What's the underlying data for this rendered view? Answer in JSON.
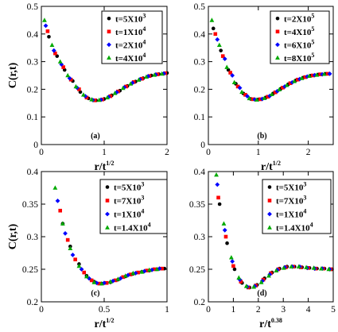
{
  "colors": {
    "black": "#000000",
    "red": "#ff0000",
    "blue": "#0000ff",
    "green": "#00aa00"
  },
  "chart_data": [
    {
      "type": "scatter",
      "panel_label": "(a)",
      "ylabel": "C(r,t)",
      "xlabel": {
        "base": "r/t",
        "exp": "1/2"
      },
      "xlim": [
        0,
        2
      ],
      "ylim": [
        0,
        0.5
      ],
      "xticks": [
        {
          "v": 0,
          "label": "0"
        },
        {
          "v": 1,
          "label": "1"
        },
        {
          "v": 2,
          "label": "2"
        }
      ],
      "yticks": [
        {
          "v": 0,
          "label": "0"
        },
        {
          "v": 0.1,
          "label": "0.1"
        },
        {
          "v": 0.2,
          "label": "0.2"
        },
        {
          "v": 0.3,
          "label": "0.3"
        },
        {
          "v": 0.4,
          "label": "0.4"
        },
        {
          "v": 0.5,
          "label": "0.5"
        }
      ],
      "legend_position": "top-right",
      "series": [
        {
          "name": "t=5X10",
          "exp": "3",
          "color": "#000000",
          "marker": "circle",
          "x": [
            0.12,
            0.25,
            0.37,
            0.5,
            0.62,
            0.75,
            0.87,
            1.0,
            1.12,
            1.25,
            1.37,
            1.5,
            1.62,
            1.75,
            1.87,
            2.0
          ],
          "y": [
            0.39,
            0.32,
            0.27,
            0.23,
            0.19,
            0.167,
            0.16,
            0.165,
            0.178,
            0.195,
            0.212,
            0.228,
            0.24,
            0.25,
            0.255,
            0.259
          ]
        },
        {
          "name": "t=1X10",
          "exp": "4",
          "color": "#ff0000",
          "marker": "square",
          "x": [
            0.1,
            0.22,
            0.35,
            0.47,
            0.6,
            0.72,
            0.85,
            0.97,
            1.1,
            1.22,
            1.35,
            1.47,
            1.6,
            1.72,
            1.85,
            1.97
          ],
          "y": [
            0.41,
            0.33,
            0.28,
            0.235,
            0.2,
            0.17,
            0.16,
            0.163,
            0.175,
            0.192,
            0.21,
            0.226,
            0.238,
            0.248,
            0.254,
            0.258
          ]
        },
        {
          "name": "t=2X10",
          "exp": "4",
          "color": "#0000ff",
          "marker": "diamond",
          "x": [
            0.07,
            0.2,
            0.32,
            0.45,
            0.57,
            0.7,
            0.82,
            0.95,
            1.07,
            1.2,
            1.32,
            1.45,
            1.57,
            1.7,
            1.82,
            1.95
          ],
          "y": [
            0.43,
            0.34,
            0.29,
            0.24,
            0.205,
            0.175,
            0.161,
            0.162,
            0.172,
            0.189,
            0.207,
            0.223,
            0.236,
            0.247,
            0.253,
            0.257
          ]
        },
        {
          "name": "t=4X10",
          "exp": "4",
          "color": "#00aa00",
          "marker": "triangle",
          "x": [
            0.05,
            0.17,
            0.3,
            0.42,
            0.55,
            0.67,
            0.8,
            0.92,
            1.05,
            1.17,
            1.3,
            1.42,
            1.55,
            1.67,
            1.8,
            1.92
          ],
          "y": [
            0.45,
            0.36,
            0.3,
            0.25,
            0.21,
            0.18,
            0.163,
            0.161,
            0.17,
            0.186,
            0.204,
            0.22,
            0.234,
            0.245,
            0.252,
            0.256
          ]
        }
      ]
    },
    {
      "type": "scatter",
      "panel_label": "(b)",
      "ylabel": "",
      "xlabel": {
        "base": "r/t",
        "exp": "1/2"
      },
      "xlim": [
        0,
        2.5
      ],
      "ylim": [
        0,
        0.5
      ],
      "xticks": [
        {
          "v": 0,
          "label": "0"
        },
        {
          "v": 1,
          "label": "1"
        },
        {
          "v": 2,
          "label": "2"
        }
      ],
      "yticks": [
        {
          "v": 0,
          "label": "0"
        },
        {
          "v": 0.1,
          "label": "0.1"
        },
        {
          "v": 0.2,
          "label": "0.2"
        },
        {
          "v": 0.3,
          "label": "0.3"
        },
        {
          "v": 0.4,
          "label": "0.4"
        },
        {
          "v": 0.5,
          "label": "0.5"
        }
      ],
      "legend_position": "top-right",
      "series": [
        {
          "name": "t=2X10",
          "exp": "5",
          "color": "#000000",
          "marker": "circle",
          "x": [
            0.1,
            0.25,
            0.4,
            0.55,
            0.7,
            0.85,
            1.0,
            1.15,
            1.3,
            1.45,
            1.6,
            1.75,
            1.9,
            2.05,
            2.2,
            2.35
          ],
          "y": [
            0.42,
            0.34,
            0.27,
            0.22,
            0.185,
            0.165,
            0.163,
            0.17,
            0.185,
            0.202,
            0.218,
            0.232,
            0.242,
            0.249,
            0.253,
            0.256
          ]
        },
        {
          "name": "t=4X10",
          "exp": "5",
          "color": "#ff0000",
          "marker": "square",
          "x": [
            0.14,
            0.29,
            0.44,
            0.59,
            0.74,
            0.89,
            1.04,
            1.19,
            1.34,
            1.49,
            1.64,
            1.79,
            1.94,
            2.09,
            2.24,
            2.39
          ],
          "y": [
            0.4,
            0.32,
            0.26,
            0.21,
            0.18,
            0.164,
            0.164,
            0.173,
            0.189,
            0.206,
            0.222,
            0.235,
            0.244,
            0.25,
            0.254,
            0.256
          ]
        },
        {
          "name": "t=6X10",
          "exp": "5",
          "color": "#0000ff",
          "marker": "diamond",
          "x": [
            0.18,
            0.33,
            0.48,
            0.63,
            0.78,
            0.93,
            1.08,
            1.23,
            1.38,
            1.53,
            1.68,
            1.83,
            1.98,
            2.13,
            2.28,
            2.43
          ],
          "y": [
            0.38,
            0.31,
            0.25,
            0.205,
            0.175,
            0.163,
            0.165,
            0.176,
            0.193,
            0.21,
            0.225,
            0.237,
            0.246,
            0.251,
            0.254,
            0.256
          ]
        },
        {
          "name": "t=8X10",
          "exp": "5",
          "color": "#00aa00",
          "marker": "triangle",
          "x": [
            0.07,
            0.22,
            0.37,
            0.52,
            0.67,
            0.82,
            0.97,
            1.12,
            1.27,
            1.42,
            1.57,
            1.72,
            1.87,
            2.02,
            2.17,
            2.32
          ],
          "y": [
            0.45,
            0.36,
            0.28,
            0.225,
            0.19,
            0.167,
            0.162,
            0.168,
            0.182,
            0.199,
            0.215,
            0.229,
            0.24,
            0.248,
            0.252,
            0.255
          ]
        }
      ]
    },
    {
      "type": "scatter",
      "panel_label": "(c)",
      "ylabel": "C(r,t)",
      "xlabel": {
        "base": "r/t",
        "exp": "1/2"
      },
      "xlim": [
        0,
        1
      ],
      "ylim": [
        0.2,
        0.4
      ],
      "xticks": [
        {
          "v": 0,
          "label": "0"
        },
        {
          "v": 0.5,
          "label": "0.5"
        },
        {
          "v": 1,
          "label": "1"
        }
      ],
      "yticks": [
        {
          "v": 0.2,
          "label": "0.2"
        },
        {
          "v": 0.25,
          "label": "0.25"
        },
        {
          "v": 0.3,
          "label": "0.3"
        },
        {
          "v": 0.35,
          "label": "0.35"
        },
        {
          "v": 0.4,
          "label": "0.4"
        }
      ],
      "legend_position": "top-right",
      "series": [
        {
          "name": "t=5X10",
          "exp": "3",
          "color": "#000000",
          "marker": "circle",
          "x": [
            0.17,
            0.23,
            0.3,
            0.36,
            0.42,
            0.48,
            0.55,
            0.61,
            0.67,
            0.73,
            0.8,
            0.86,
            0.92,
            0.98
          ],
          "y": [
            0.32,
            0.285,
            0.258,
            0.24,
            0.231,
            0.228,
            0.23,
            0.234,
            0.239,
            0.243,
            0.246,
            0.248,
            0.25,
            0.251
          ]
        },
        {
          "name": "t=7X10",
          "exp": "3",
          "color": "#ff0000",
          "marker": "square",
          "x": [
            0.15,
            0.21,
            0.27,
            0.34,
            0.4,
            0.46,
            0.52,
            0.59,
            0.65,
            0.71,
            0.77,
            0.84,
            0.9,
            0.96
          ],
          "y": [
            0.34,
            0.295,
            0.265,
            0.245,
            0.233,
            0.228,
            0.229,
            0.233,
            0.238,
            0.242,
            0.245,
            0.248,
            0.25,
            0.251
          ]
        },
        {
          "name": "t=1X10",
          "exp": "4",
          "color": "#0000ff",
          "marker": "diamond",
          "x": [
            0.13,
            0.19,
            0.25,
            0.32,
            0.38,
            0.44,
            0.5,
            0.57,
            0.63,
            0.69,
            0.75,
            0.82,
            0.88,
            0.94
          ],
          "y": [
            0.355,
            0.305,
            0.272,
            0.25,
            0.236,
            0.229,
            0.229,
            0.232,
            0.236,
            0.241,
            0.244,
            0.247,
            0.249,
            0.251
          ]
        },
        {
          "name": "t=1.4X10",
          "exp": "4",
          "color": "#00aa00",
          "marker": "triangle",
          "x": [
            0.11,
            0.17,
            0.23,
            0.3,
            0.36,
            0.42,
            0.48,
            0.55,
            0.61,
            0.67,
            0.73,
            0.8,
            0.86,
            0.92
          ],
          "y": [
            0.375,
            0.32,
            0.282,
            0.255,
            0.239,
            0.23,
            0.228,
            0.231,
            0.235,
            0.24,
            0.244,
            0.246,
            0.249,
            0.25
          ]
        }
      ]
    },
    {
      "type": "scatter",
      "panel_label": "(d)",
      "ylabel": "",
      "xlabel": {
        "base": "r/t",
        "exp": "0.38"
      },
      "xlim": [
        0,
        5
      ],
      "ylim": [
        0.2,
        0.4
      ],
      "xticks": [
        {
          "v": 0,
          "label": "0"
        },
        {
          "v": 1,
          "label": "1"
        },
        {
          "v": 2,
          "label": "2"
        },
        {
          "v": 3,
          "label": "3"
        },
        {
          "v": 4,
          "label": "4"
        },
        {
          "v": 5,
          "label": "5"
        }
      ],
      "yticks": [
        {
          "v": 0.2,
          "label": "0.2"
        },
        {
          "v": 0.25,
          "label": "0.25"
        },
        {
          "v": 0.3,
          "label": "0.3"
        },
        {
          "v": 0.35,
          "label": "0.35"
        },
        {
          "v": 0.4,
          "label": "0.4"
        }
      ],
      "legend_position": "top-right",
      "series": [
        {
          "name": "t=5X10",
          "exp": "3",
          "color": "#000000",
          "marker": "circle",
          "x": [
            0.45,
            0.75,
            1.05,
            1.35,
            1.65,
            1.95,
            2.25,
            2.55,
            2.85,
            3.15,
            3.45,
            3.75,
            4.05,
            4.35,
            4.65,
            4.95
          ],
          "y": [
            0.35,
            0.29,
            0.25,
            0.229,
            0.222,
            0.226,
            0.236,
            0.245,
            0.251,
            0.254,
            0.254,
            0.253,
            0.252,
            0.251,
            0.251,
            0.25
          ]
        },
        {
          "name": "t=7X10",
          "exp": "3",
          "color": "#ff0000",
          "marker": "square",
          "x": [
            0.4,
            0.7,
            1.0,
            1.3,
            1.6,
            1.9,
            2.2,
            2.5,
            2.8,
            3.1,
            3.4,
            3.7,
            4.0,
            4.3,
            4.6,
            4.9
          ],
          "y": [
            0.36,
            0.3,
            0.255,
            0.231,
            0.222,
            0.225,
            0.234,
            0.244,
            0.25,
            0.253,
            0.254,
            0.253,
            0.252,
            0.251,
            0.251,
            0.25
          ]
        },
        {
          "name": "t=1X10",
          "exp": "4",
          "color": "#0000ff",
          "marker": "diamond",
          "x": [
            0.36,
            0.66,
            0.96,
            1.26,
            1.56,
            1.86,
            2.16,
            2.46,
            2.76,
            3.06,
            3.36,
            3.66,
            3.96,
            4.26,
            4.56,
            4.86
          ],
          "y": [
            0.38,
            0.31,
            0.262,
            0.234,
            0.223,
            0.224,
            0.232,
            0.242,
            0.249,
            0.253,
            0.254,
            0.254,
            0.252,
            0.251,
            0.251,
            0.25
          ]
        },
        {
          "name": "t=1.4X10",
          "exp": "4",
          "color": "#00aa00",
          "marker": "triangle",
          "x": [
            0.32,
            0.62,
            0.92,
            1.22,
            1.52,
            1.82,
            2.12,
            2.42,
            2.72,
            3.02,
            3.32,
            3.62,
            3.92,
            4.22,
            4.52,
            4.82
          ],
          "y": [
            0.395,
            0.32,
            0.268,
            0.237,
            0.224,
            0.223,
            0.23,
            0.24,
            0.248,
            0.252,
            0.254,
            0.254,
            0.253,
            0.252,
            0.251,
            0.25
          ]
        }
      ]
    }
  ]
}
